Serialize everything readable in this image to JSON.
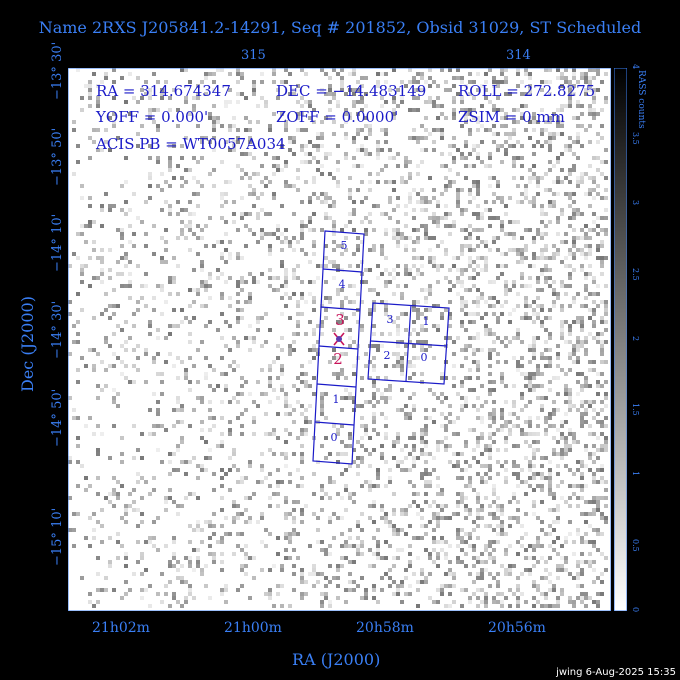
{
  "title": "Name 2RXS J205841.2-14291, Seq # 201852, Obsid 31029, ST Scheduled",
  "info": {
    "ra": "RA = 314.674347",
    "dec": "DEC = −14.483149",
    "roll": "ROLL = 272.8275",
    "yoff": "YOFF =   0.000'",
    "zoff": "ZOFF =  0.0000'",
    "zsim": "ZSIM = 0 mm",
    "acis_pb": "ACIS PB = WT0057A034"
  },
  "axes": {
    "x_label": "RA (J2000)",
    "y_label": "Dec (J2000)",
    "x_ticks_bottom": [
      "21h02m",
      "21h00m",
      "20h58m",
      "20h56m"
    ],
    "x_ticks_top": [
      "315",
      "314"
    ],
    "y_ticks": [
      "−13° 30'",
      "−13° 50'",
      "−14° 10'",
      "−14° 30'",
      "−14° 50'",
      "−15° 10'"
    ]
  },
  "colorbar": {
    "label": "RASS counts",
    "ticks": [
      "0",
      "0.5",
      "1",
      "1.5",
      "2",
      "2.5",
      "3",
      "3.5",
      "4"
    ]
  },
  "chips_acis_s": [
    "5",
    "4",
    "3",
    "2",
    "1",
    "0"
  ],
  "chips_acis_i": [
    "3",
    "1",
    "2",
    "0"
  ],
  "footer": "jwing   6-Aug-2025 15:35",
  "colors": {
    "label_blue": "#3a7ff5",
    "chip_blue": "#1a1ac8",
    "highlight": "#c8145a"
  }
}
